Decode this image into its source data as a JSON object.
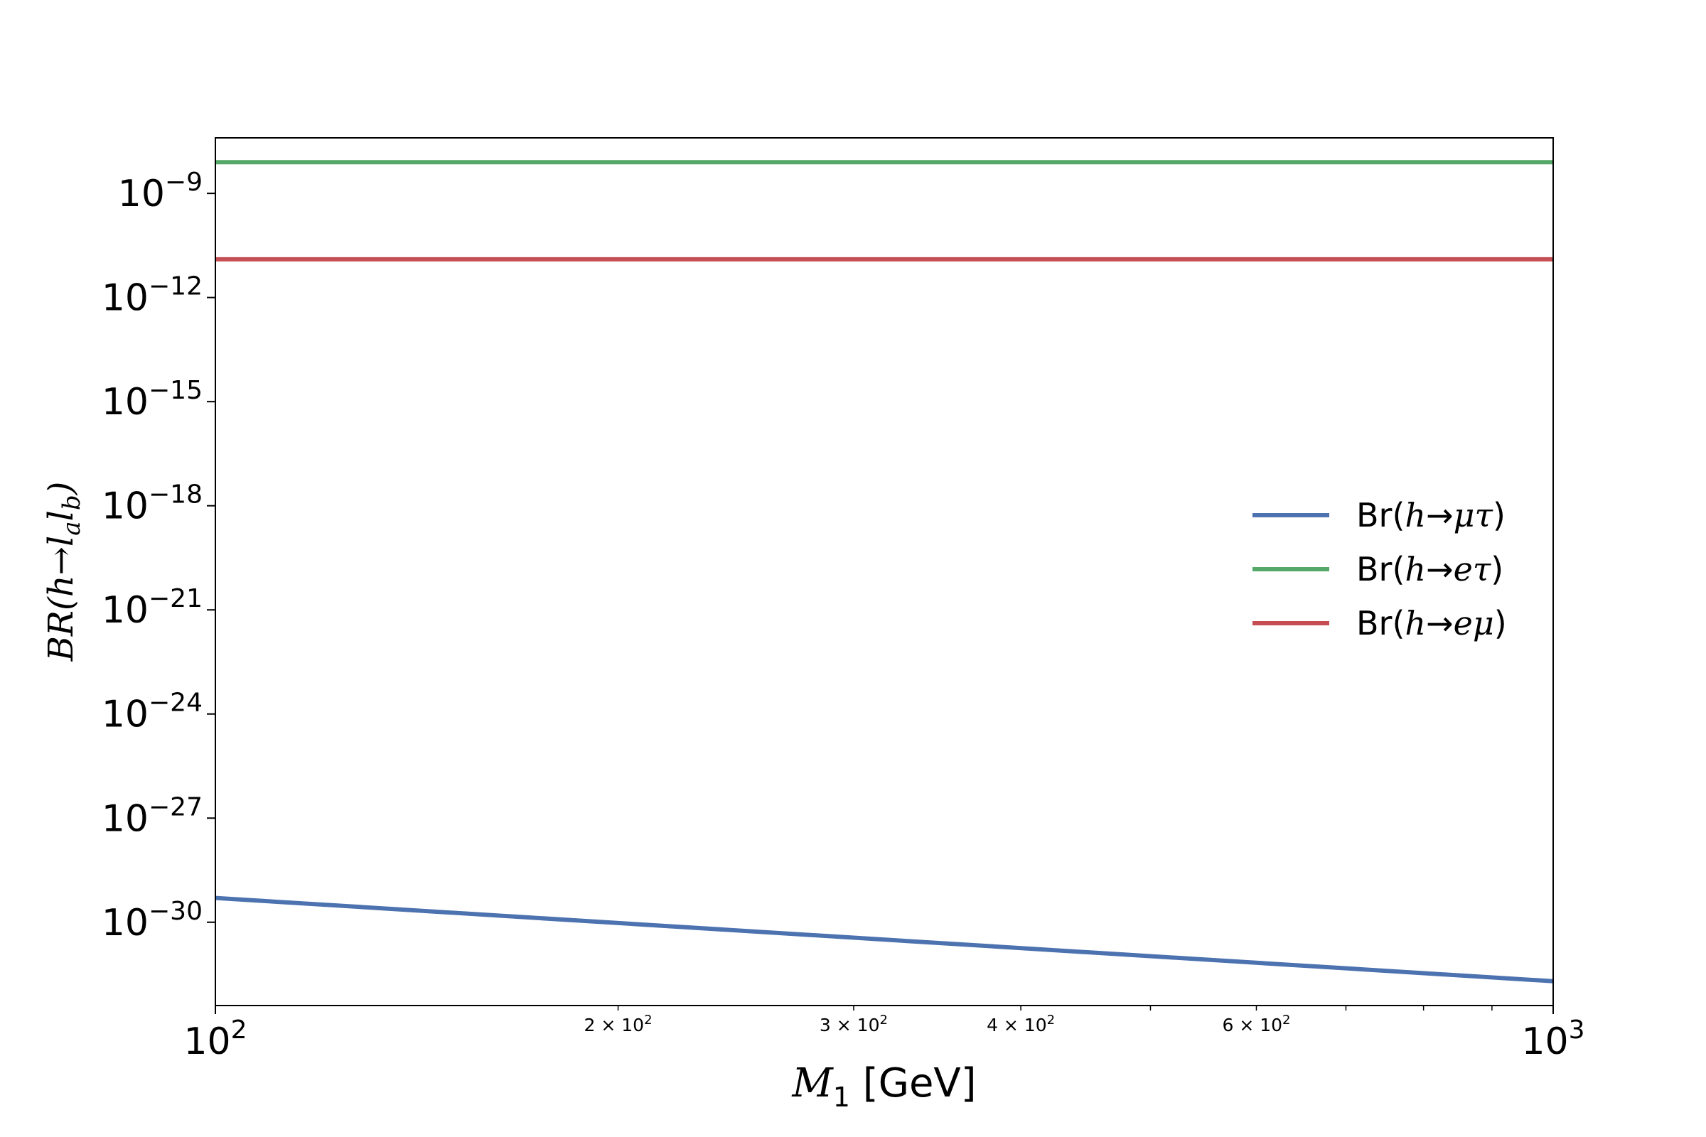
{
  "chart_data": {
    "type": "line",
    "title": "",
    "x_scale": "log",
    "y_scale": "log",
    "xlim": [
      100,
      1000
    ],
    "ylim_exponent": [
      -32.4,
      -7.4
    ],
    "xlabel": {
      "main": "M",
      "sub": "1",
      "unit": " [GeV]"
    },
    "ylabel": {
      "prefix": "BR",
      "open": "(h→",
      "l1": "l",
      "sub1": "a",
      "l2": "l",
      "sub2": "b",
      "close": ")"
    },
    "x_major_ticks": [
      {
        "value": 100,
        "base": "10",
        "exp": "2"
      },
      {
        "value": 1000,
        "base": "10",
        "exp": "3"
      }
    ],
    "x_minor_tick_values": [
      200,
      300,
      400,
      500,
      600,
      700,
      800,
      900
    ],
    "x_minor_labels": [
      {
        "value": 200,
        "mant": "2",
        "times": "×",
        "base": "10",
        "exp": "2"
      },
      {
        "value": 300,
        "mant": "3",
        "times": "×",
        "base": "10",
        "exp": "2"
      },
      {
        "value": 400,
        "mant": "4",
        "times": "×",
        "base": "10",
        "exp": "2"
      },
      {
        "value": 600,
        "mant": "6",
        "times": "×",
        "base": "10",
        "exp": "2"
      }
    ],
    "y_major_ticks": [
      {
        "exp_value": -9,
        "base": "10",
        "exp": "−9"
      },
      {
        "exp_value": -12,
        "base": "10",
        "exp": "−12"
      },
      {
        "exp_value": -15,
        "base": "10",
        "exp": "−15"
      },
      {
        "exp_value": -18,
        "base": "10",
        "exp": "−18"
      },
      {
        "exp_value": -21,
        "base": "10",
        "exp": "−21"
      },
      {
        "exp_value": -24,
        "base": "10",
        "exp": "−24"
      },
      {
        "exp_value": -27,
        "base": "10",
        "exp": "−27"
      },
      {
        "exp_value": -30,
        "base": "10",
        "exp": "−30"
      }
    ],
    "series": [
      {
        "name_parts": {
          "prefix": "Br(",
          "h": "h",
          "arrow": "→",
          "p1": "μ",
          "p2": "τ",
          "close": ")"
        },
        "color": "#4c72b0",
        "x": [
          100,
          1000
        ],
        "y_exponent": [
          -29.3,
          -31.7
        ]
      },
      {
        "name_parts": {
          "prefix": "Br(",
          "h": "h",
          "arrow": "→",
          "p1": "e",
          "p2": "τ",
          "close": ")"
        },
        "color": "#55a868",
        "x": [
          100,
          1000
        ],
        "y_exponent": [
          -8.1,
          -8.1
        ]
      },
      {
        "name_parts": {
          "prefix": "Br(",
          "h": "h",
          "arrow": "→",
          "p1": "e",
          "p2": "μ",
          "close": ")"
        },
        "color": "#c44e52",
        "x": [
          100,
          1000
        ],
        "y_exponent": [
          -10.9,
          -10.9
        ]
      }
    ],
    "legend_position": "center-right",
    "grid": false
  }
}
